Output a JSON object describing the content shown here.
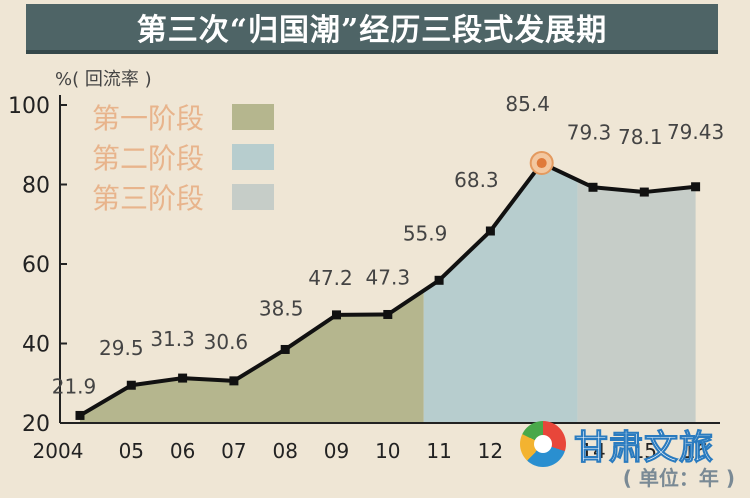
{
  "title": "第三次“归国潮”经历三段式发展期",
  "watermark": "甘肃文旅",
  "chart_data": {
    "type": "area",
    "title": "第三次“归国潮”经历三段式发展期",
    "ylabel": "%( 回流率 )",
    "xlabel": "( 单位：年 )",
    "categories": [
      "2004",
      "05",
      "06",
      "07",
      "08",
      "09",
      "10",
      "11",
      "12",
      "13",
      "14",
      "15",
      "16"
    ],
    "values": [
      21.9,
      29.5,
      31.3,
      30.6,
      38.5,
      47.2,
      47.3,
      55.9,
      68.3,
      85.4,
      79.3,
      78.1,
      79.43
    ],
    "value_labels": [
      "21.9",
      "29.5",
      "31.3",
      "30.6",
      "38.5",
      "47.2",
      "47.3",
      "55.9",
      "68.3",
      "85.4",
      "79.3",
      "78.1",
      "79.43"
    ],
    "yticks": [
      "100",
      "80",
      "60",
      "40",
      "20"
    ],
    "ylim": [
      20,
      100
    ],
    "highlight_index": 9,
    "grid": false,
    "legend_position": "top-left",
    "stages": [
      {
        "name": "第一阶段",
        "start": 0,
        "end": 6.7,
        "color": "#b5b68e"
      },
      {
        "name": "第二阶段",
        "start": 6.7,
        "end": 9.7,
        "color": "#b7cdce"
      },
      {
        "name": "第三阶段",
        "start": 9.7,
        "end": 12,
        "color": "#c6cdc8"
      }
    ],
    "colors": {
      "line": "#111111",
      "highlight": "#e49a5f",
      "legend_text": "#e8b48c",
      "labels": "#444444"
    }
  }
}
